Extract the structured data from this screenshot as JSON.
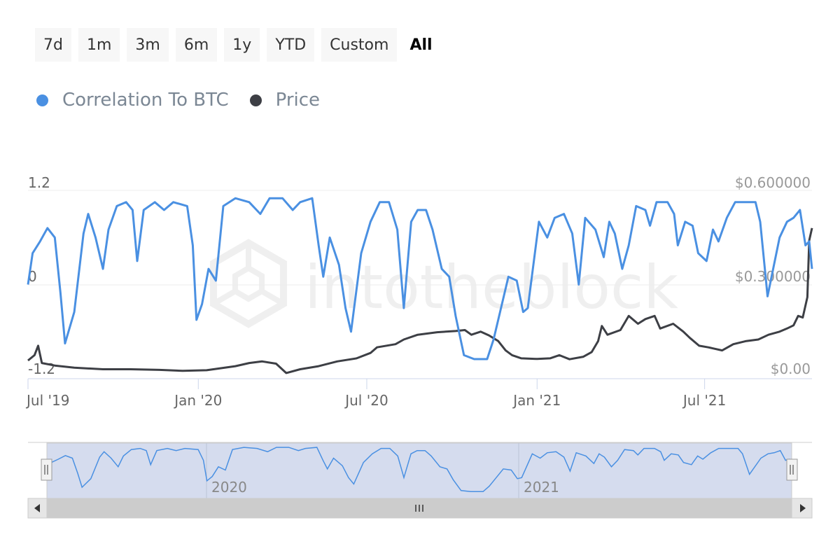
{
  "range_selector": {
    "buttons": [
      "7d",
      "1m",
      "3m",
      "6m",
      "1y",
      "YTD",
      "Custom",
      "All"
    ],
    "active": "All"
  },
  "legend": [
    {
      "label": "Correlation To BTC",
      "color": "#4a90e2"
    },
    {
      "label": "Price",
      "color": "#3d3f45"
    }
  ],
  "watermark": "intotheblock",
  "chart_data": {
    "type": "line",
    "x_ticks": [
      "Jul '19",
      "Jan '20",
      "Jul '20",
      "Jan '21",
      "Jul '21"
    ],
    "y_left": {
      "ticks": [
        "1.2",
        "0",
        "-1.2"
      ],
      "range": [
        -1.2,
        1.2
      ]
    },
    "y_right": {
      "ticks": [
        "$0.600000",
        "$0.300000",
        "$0.00"
      ],
      "range": [
        0,
        0.6
      ]
    },
    "x_range": [
      "2019-07-01",
      "2021-10-25"
    ],
    "series": [
      {
        "name": "Correlation To BTC",
        "axis": "left",
        "color": "#4a90e2",
        "points": [
          [
            "2019-07-01",
            0.0
          ],
          [
            "2019-07-06",
            0.4
          ],
          [
            "2019-07-14",
            0.55
          ],
          [
            "2019-07-22",
            0.72
          ],
          [
            "2019-07-30",
            0.6
          ],
          [
            "2019-08-05",
            -0.1
          ],
          [
            "2019-08-10",
            -0.75
          ],
          [
            "2019-08-20",
            -0.35
          ],
          [
            "2019-08-30",
            0.65
          ],
          [
            "2019-09-04",
            0.9
          ],
          [
            "2019-09-12",
            0.6
          ],
          [
            "2019-09-20",
            0.2
          ],
          [
            "2019-09-26",
            0.7
          ],
          [
            "2019-10-05",
            1.0
          ],
          [
            "2019-10-15",
            1.05
          ],
          [
            "2019-10-22",
            0.95
          ],
          [
            "2019-10-27",
            0.3
          ],
          [
            "2019-11-03",
            0.95
          ],
          [
            "2019-11-15",
            1.05
          ],
          [
            "2019-11-25",
            0.95
          ],
          [
            "2019-12-05",
            1.05
          ],
          [
            "2019-12-20",
            1.0
          ],
          [
            "2019-12-26",
            0.5
          ],
          [
            "2019-12-30",
            -0.45
          ],
          [
            "2020-01-05",
            -0.25
          ],
          [
            "2020-01-12",
            0.2
          ],
          [
            "2020-01-20",
            0.05
          ],
          [
            "2020-01-28",
            1.0
          ],
          [
            "2020-02-10",
            1.1
          ],
          [
            "2020-02-25",
            1.05
          ],
          [
            "2020-03-08",
            0.9
          ],
          [
            "2020-03-18",
            1.1
          ],
          [
            "2020-04-01",
            1.1
          ],
          [
            "2020-04-12",
            0.95
          ],
          [
            "2020-04-20",
            1.05
          ],
          [
            "2020-05-03",
            1.1
          ],
          [
            "2020-05-10",
            0.5
          ],
          [
            "2020-05-15",
            0.1
          ],
          [
            "2020-05-22",
            0.6
          ],
          [
            "2020-06-01",
            0.25
          ],
          [
            "2020-06-08",
            -0.3
          ],
          [
            "2020-06-14",
            -0.6
          ],
          [
            "2020-06-25",
            0.4
          ],
          [
            "2020-07-05",
            0.8
          ],
          [
            "2020-07-15",
            1.05
          ],
          [
            "2020-07-25",
            1.05
          ],
          [
            "2020-08-03",
            0.7
          ],
          [
            "2020-08-10",
            -0.3
          ],
          [
            "2020-08-18",
            0.8
          ],
          [
            "2020-08-25",
            0.95
          ],
          [
            "2020-09-03",
            0.95
          ],
          [
            "2020-09-10",
            0.7
          ],
          [
            "2020-09-20",
            0.2
          ],
          [
            "2020-09-28",
            0.1
          ],
          [
            "2020-10-05",
            -0.4
          ],
          [
            "2020-10-14",
            -0.9
          ],
          [
            "2020-10-25",
            -0.95
          ],
          [
            "2020-11-08",
            -0.95
          ],
          [
            "2020-11-15",
            -0.7
          ],
          [
            "2020-11-22",
            -0.35
          ],
          [
            "2020-12-01",
            0.1
          ],
          [
            "2020-12-10",
            0.05
          ],
          [
            "2020-12-17",
            -0.35
          ],
          [
            "2020-12-22",
            -0.3
          ],
          [
            "2021-01-03",
            0.8
          ],
          [
            "2021-01-12",
            0.6
          ],
          [
            "2021-01-20",
            0.85
          ],
          [
            "2021-01-30",
            0.9
          ],
          [
            "2021-02-08",
            0.65
          ],
          [
            "2021-02-15",
            0.0
          ],
          [
            "2021-02-22",
            0.85
          ],
          [
            "2021-03-05",
            0.7
          ],
          [
            "2021-03-14",
            0.35
          ],
          [
            "2021-03-20",
            0.8
          ],
          [
            "2021-03-26",
            0.65
          ],
          [
            "2021-04-03",
            0.2
          ],
          [
            "2021-04-10",
            0.5
          ],
          [
            "2021-04-18",
            1.0
          ],
          [
            "2021-04-28",
            0.95
          ],
          [
            "2021-05-03",
            0.75
          ],
          [
            "2021-05-10",
            1.05
          ],
          [
            "2021-05-22",
            1.05
          ],
          [
            "2021-05-29",
            0.9
          ],
          [
            "2021-06-02",
            0.5
          ],
          [
            "2021-06-10",
            0.8
          ],
          [
            "2021-06-18",
            0.75
          ],
          [
            "2021-06-24",
            0.4
          ],
          [
            "2021-07-03",
            0.3
          ],
          [
            "2021-07-10",
            0.7
          ],
          [
            "2021-07-16",
            0.55
          ],
          [
            "2021-07-25",
            0.85
          ],
          [
            "2021-08-03",
            1.05
          ],
          [
            "2021-08-15",
            1.05
          ],
          [
            "2021-08-25",
            1.05
          ],
          [
            "2021-08-30",
            0.8
          ],
          [
            "2021-09-07",
            -0.15
          ],
          [
            "2021-09-20",
            0.6
          ],
          [
            "2021-09-28",
            0.8
          ],
          [
            "2021-10-05",
            0.85
          ],
          [
            "2021-10-12",
            0.95
          ],
          [
            "2021-10-18",
            0.5
          ],
          [
            "2021-10-22",
            0.55
          ],
          [
            "2021-10-25",
            0.2
          ]
        ]
      },
      {
        "name": "Price",
        "axis": "right",
        "color": "#3d3f45",
        "points": [
          [
            "2019-07-01",
            0.058
          ],
          [
            "2019-07-08",
            0.075
          ],
          [
            "2019-07-12",
            0.105
          ],
          [
            "2019-07-16",
            0.05
          ],
          [
            "2019-07-30",
            0.042
          ],
          [
            "2019-08-20",
            0.035
          ],
          [
            "2019-09-20",
            0.03
          ],
          [
            "2019-10-20",
            0.03
          ],
          [
            "2019-11-20",
            0.028
          ],
          [
            "2019-12-15",
            0.025
          ],
          [
            "2020-01-10",
            0.027
          ],
          [
            "2020-02-10",
            0.04
          ],
          [
            "2020-02-25",
            0.05
          ],
          [
            "2020-03-10",
            0.055
          ],
          [
            "2020-03-25",
            0.048
          ],
          [
            "2020-04-05",
            0.018
          ],
          [
            "2020-04-20",
            0.03
          ],
          [
            "2020-05-10",
            0.04
          ],
          [
            "2020-05-30",
            0.055
          ],
          [
            "2020-06-20",
            0.065
          ],
          [
            "2020-07-05",
            0.082
          ],
          [
            "2020-07-12",
            0.1
          ],
          [
            "2020-08-01",
            0.11
          ],
          [
            "2020-08-10",
            0.125
          ],
          [
            "2020-08-25",
            0.14
          ],
          [
            "2020-09-15",
            0.148
          ],
          [
            "2020-10-05",
            0.152
          ],
          [
            "2020-10-15",
            0.155
          ],
          [
            "2020-10-22",
            0.14
          ],
          [
            "2020-11-01",
            0.15
          ],
          [
            "2020-11-10",
            0.138
          ],
          [
            "2020-11-20",
            0.12
          ],
          [
            "2020-11-28",
            0.09
          ],
          [
            "2020-12-05",
            0.075
          ],
          [
            "2020-12-15",
            0.065
          ],
          [
            "2021-01-01",
            0.063
          ],
          [
            "2021-01-15",
            0.065
          ],
          [
            "2021-01-25",
            0.075
          ],
          [
            "2021-02-05",
            0.062
          ],
          [
            "2021-02-20",
            0.07
          ],
          [
            "2021-03-01",
            0.085
          ],
          [
            "2021-03-08",
            0.12
          ],
          [
            "2021-03-12",
            0.168
          ],
          [
            "2021-03-18",
            0.14
          ],
          [
            "2021-04-01",
            0.155
          ],
          [
            "2021-04-10",
            0.2
          ],
          [
            "2021-04-20",
            0.175
          ],
          [
            "2021-04-28",
            0.19
          ],
          [
            "2021-05-08",
            0.2
          ],
          [
            "2021-05-14",
            0.16
          ],
          [
            "2021-05-28",
            0.175
          ],
          [
            "2021-06-08",
            0.15
          ],
          [
            "2021-06-15",
            0.13
          ],
          [
            "2021-06-25",
            0.105
          ],
          [
            "2021-07-05",
            0.1
          ],
          [
            "2021-07-20",
            0.09
          ],
          [
            "2021-08-01",
            0.11
          ],
          [
            "2021-08-15",
            0.12
          ],
          [
            "2021-08-28",
            0.125
          ],
          [
            "2021-09-08",
            0.14
          ],
          [
            "2021-09-20",
            0.15
          ],
          [
            "2021-09-28",
            0.16
          ],
          [
            "2021-10-05",
            0.17
          ],
          [
            "2021-10-10",
            0.2
          ],
          [
            "2021-10-15",
            0.195
          ],
          [
            "2021-10-20",
            0.26
          ],
          [
            "2021-10-22",
            0.44
          ],
          [
            "2021-10-25",
            0.48
          ]
        ]
      }
    ],
    "navigator": {
      "labels": [
        "2020",
        "2021"
      ]
    }
  }
}
